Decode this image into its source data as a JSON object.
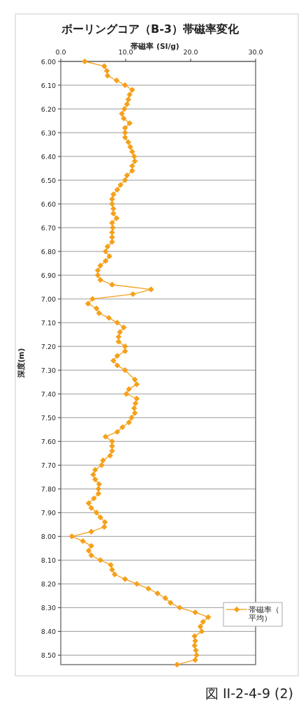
{
  "chart_data": {
    "type": "line",
    "title": "ボーリングコア（B-3）帯磁率変化",
    "xlabel": "帯磁率 (SI/g)",
    "ylabel": "深度(m)",
    "annotations": [
      "図 II-2-4-9 (2)"
    ],
    "xlim": [
      0,
      30
    ],
    "xticks": [
      {
        "value": 0,
        "label": "0.0"
      },
      {
        "value": 10,
        "label": "10.0"
      },
      {
        "value": 20,
        "label": "20.0"
      },
      {
        "value": 30,
        "label": "30.0"
      }
    ],
    "ylim": [
      8.54,
      6.0
    ],
    "yticks": [
      {
        "value": 6.0,
        "label": "6.00"
      },
      {
        "value": 6.1,
        "label": "6.10"
      },
      {
        "value": 6.2,
        "label": "6.20"
      },
      {
        "value": 6.3,
        "label": "6.30"
      },
      {
        "value": 6.4,
        "label": "6.40"
      },
      {
        "value": 6.5,
        "label": "6.50"
      },
      {
        "value": 6.6,
        "label": "6.60"
      },
      {
        "value": 6.7,
        "label": "6.70"
      },
      {
        "value": 6.8,
        "label": "6.80"
      },
      {
        "value": 6.9,
        "label": "6.90"
      },
      {
        "value": 7.0,
        "label": "7.00"
      },
      {
        "value": 7.1,
        "label": "7.10"
      },
      {
        "value": 7.2,
        "label": "7.20"
      },
      {
        "value": 7.3,
        "label": "7.30"
      },
      {
        "value": 7.4,
        "label": "7.40"
      },
      {
        "value": 7.5,
        "label": "7.50"
      },
      {
        "value": 7.6,
        "label": "7.60"
      },
      {
        "value": 7.7,
        "label": "7.70"
      },
      {
        "value": 7.8,
        "label": "7.80"
      },
      {
        "value": 7.9,
        "label": "7.90"
      },
      {
        "value": 8.0,
        "label": "8.00"
      },
      {
        "value": 8.1,
        "label": "8.10"
      },
      {
        "value": 8.2,
        "label": "8.20"
      },
      {
        "value": 8.3,
        "label": "8.30"
      },
      {
        "value": 8.4,
        "label": "8.40"
      },
      {
        "value": 8.5,
        "label": "8.50"
      }
    ],
    "grid": "y",
    "legend": "right",
    "marker": "diamond",
    "line_style": "solid",
    "series": [
      {
        "name": "帯磁率（平均）",
        "color": "#f5a01a",
        "x": [
          3.7,
          6.7,
          7.1,
          7.2,
          8.6,
          9.9,
          11.0,
          10.6,
          10.4,
          10.2,
          9.8,
          9.4,
          9.7,
          10.6,
          9.9,
          9.9,
          9.9,
          10.4,
          10.7,
          11.0,
          11.3,
          11.4,
          11.0,
          11.0,
          10.2,
          9.9,
          9.2,
          8.7,
          8.1,
          7.9,
          7.9,
          8.1,
          8.1,
          8.6,
          7.9,
          8.0,
          7.9,
          7.9,
          7.9,
          7.2,
          6.9,
          7.5,
          6.9,
          6.1,
          5.7,
          5.7,
          6.1,
          7.9,
          13.9,
          11.1,
          4.9,
          4.2,
          5.5,
          5.9,
          7.4,
          8.7,
          9.7,
          9.1,
          8.9,
          8.9,
          9.9,
          9.9,
          8.7,
          8.1,
          8.7,
          9.9,
          11.4,
          11.7,
          10.5,
          10.1,
          11.7,
          11.5,
          11.3,
          11.4,
          10.9,
          10.5,
          9.5,
          8.7,
          6.9,
          7.9,
          7.9,
          7.9,
          7.6,
          6.5,
          6.3,
          5.3,
          5.0,
          5.3,
          5.9,
          5.8,
          5.8,
          5.1,
          4.3,
          4.7,
          5.5,
          6.1,
          6.8,
          6.7,
          4.7,
          1.7,
          3.4,
          4.7,
          4.3,
          4.7,
          6.1,
          7.7,
          7.9,
          8.3,
          9.9,
          11.7,
          13.5,
          14.9,
          16.1,
          16.9,
          18.3,
          20.7,
          22.7,
          21.9,
          21.5,
          21.7,
          20.6,
          20.7,
          20.6,
          20.8,
          20.9,
          20.7,
          17.9
        ],
        "values": [
          6.0,
          6.02,
          6.04,
          6.06,
          6.08,
          6.1,
          6.12,
          6.14,
          6.16,
          6.18,
          6.2,
          6.22,
          6.24,
          6.26,
          6.28,
          6.3,
          6.32,
          6.34,
          6.36,
          6.38,
          6.4,
          6.42,
          6.44,
          6.46,
          6.48,
          6.5,
          6.52,
          6.54,
          6.56,
          6.58,
          6.6,
          6.62,
          6.64,
          6.66,
          6.68,
          6.7,
          6.72,
          6.74,
          6.76,
          6.78,
          6.8,
          6.82,
          6.84,
          6.86,
          6.88,
          6.9,
          6.92,
          6.94,
          6.96,
          6.98,
          7.0,
          7.02,
          7.04,
          7.06,
          7.08,
          7.1,
          7.12,
          7.14,
          7.16,
          7.18,
          7.2,
          7.22,
          7.24,
          7.26,
          7.28,
          7.3,
          7.34,
          7.36,
          7.38,
          7.4,
          7.42,
          7.44,
          7.46,
          7.48,
          7.5,
          7.52,
          7.54,
          7.56,
          7.58,
          7.6,
          7.62,
          7.64,
          7.66,
          7.68,
          7.7,
          7.72,
          7.74,
          7.76,
          7.78,
          7.8,
          7.82,
          7.84,
          7.86,
          7.88,
          7.9,
          7.92,
          7.94,
          7.96,
          7.98,
          8.0,
          8.02,
          8.04,
          8.06,
          8.08,
          8.1,
          8.12,
          8.14,
          8.16,
          8.18,
          8.2,
          8.22,
          8.24,
          8.26,
          8.28,
          8.3,
          8.32,
          8.34,
          8.36,
          8.38,
          8.4,
          8.42,
          8.44,
          8.46,
          8.48,
          8.5,
          8.52,
          8.54
        ]
      }
    ]
  }
}
